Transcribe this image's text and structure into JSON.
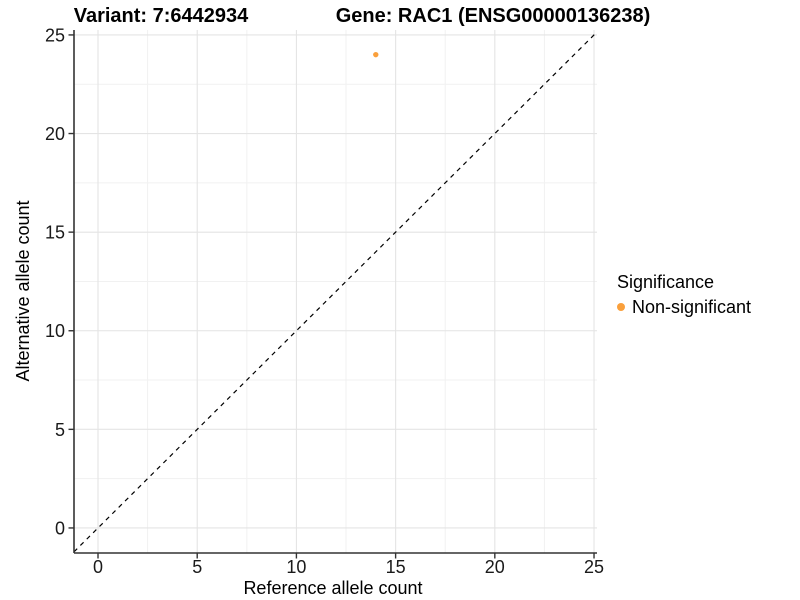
{
  "chart_data": {
    "type": "scatter",
    "title_left": "Variant: 7:6442934",
    "title_right": "Gene: RAC1 (ENSG00000136238)",
    "xlabel": "Reference allele count",
    "ylabel": "Alternative allele count",
    "xlim": [
      -1.21,
      25.15
    ],
    "ylim": [
      -1.27,
      25.25
    ],
    "x_ticks": [
      0,
      5,
      10,
      15,
      20,
      25
    ],
    "y_ticks": [
      0,
      5,
      10,
      15,
      20,
      25
    ],
    "minor_ticks": [
      2.5,
      7.5,
      12.5,
      17.5,
      22.5
    ],
    "grid": true,
    "points": [
      {
        "x": 14,
        "y": 24,
        "series": "Non-significant",
        "color": "#FAA03C"
      }
    ],
    "identity_line": {
      "slope": 1,
      "intercept": 0,
      "style": "dashed",
      "color": "#000000"
    },
    "legend": {
      "position": "right",
      "title": "Significance",
      "entries": [
        {
          "label": "Non-significant",
          "color": "#FAA03C"
        }
      ]
    },
    "colors": {
      "non_significant": "#FAA03C",
      "grid_major": "#E4E4E4",
      "grid_minor": "#F1F1F1",
      "axis_line": "#333333",
      "tick_label": "#1A1A1A"
    }
  }
}
